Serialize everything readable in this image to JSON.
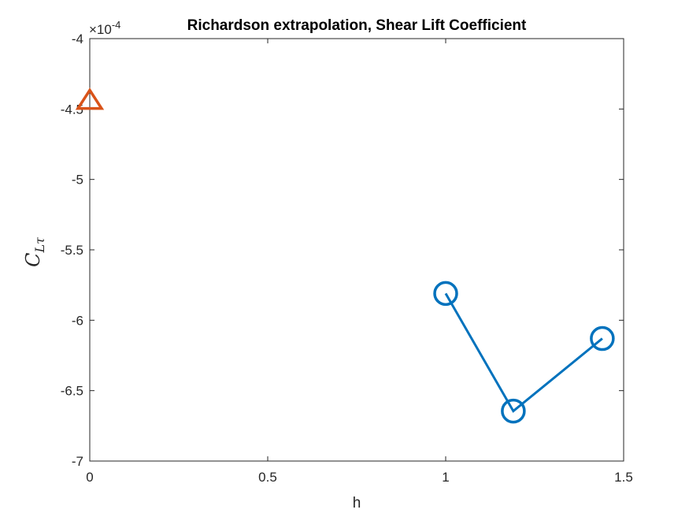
{
  "chart_data": {
    "type": "line",
    "title": "Richardson extrapolation, Shear Lift Coefficient",
    "xlabel": "h",
    "ylabel": "C",
    "ylabel_subscript": "Lτ",
    "xlim": [
      0,
      1.5
    ],
    "ylim": [
      -7,
      -4
    ],
    "y_exponent_label": "×10",
    "y_exponent_power": "-4",
    "x_ticks": [
      {
        "value": 0,
        "label": "0"
      },
      {
        "value": 0.5,
        "label": "0.5"
      },
      {
        "value": 1,
        "label": "1"
      },
      {
        "value": 1.5,
        "label": "1.5"
      }
    ],
    "y_ticks": [
      {
        "value": -4,
        "label": "-4"
      },
      {
        "value": -4.5,
        "label": "-4.5"
      },
      {
        "value": -5,
        "label": "-5"
      },
      {
        "value": -5.5,
        "label": "-5.5"
      },
      {
        "value": -6,
        "label": "-6"
      },
      {
        "value": -6.5,
        "label": "-6.5"
      },
      {
        "value": -7,
        "label": "-7"
      }
    ],
    "grid": false,
    "series": [
      {
        "marker": "circle",
        "color": "#0072BD",
        "line": true,
        "x": [
          1,
          1.19,
          1.44
        ],
        "y": [
          -5.81,
          -6.645,
          -6.13
        ]
      },
      {
        "marker": "triangle",
        "color": "#D95319",
        "line": false,
        "x": [
          0
        ],
        "y": [
          -4.45
        ]
      }
    ]
  }
}
